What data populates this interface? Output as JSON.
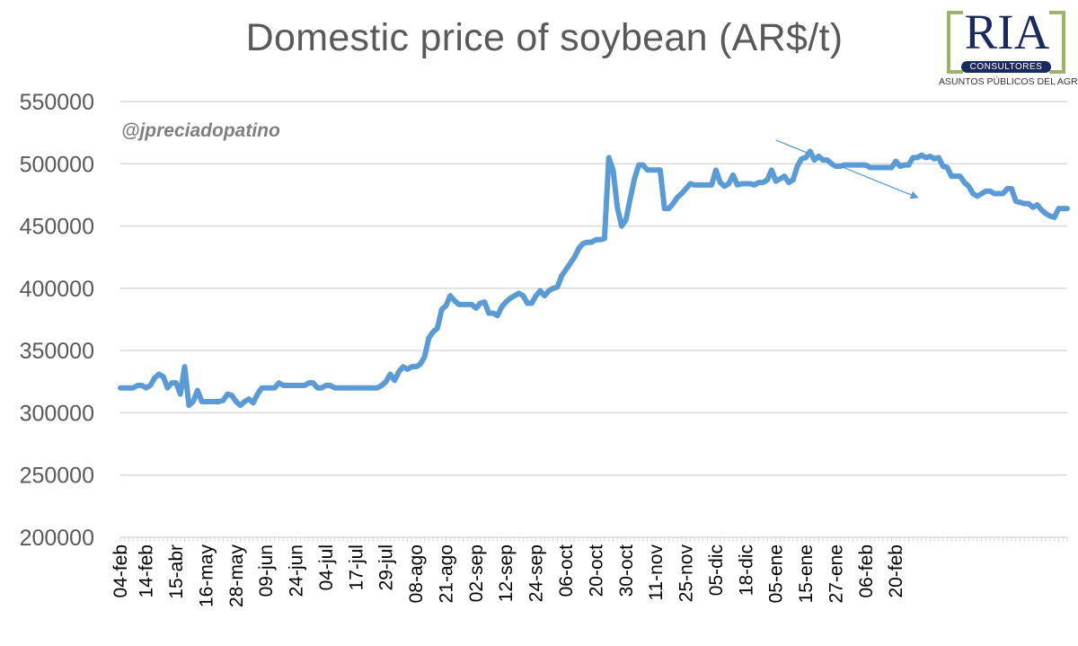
{
  "watermark": "@jpreciadopatino",
  "logo": {
    "name": "RIA",
    "badge": "CONSULTORES",
    "tagline": "ASUNTOS PÚBLICOS DEL AGRO",
    "colors": {
      "navy": "#1b2a5c",
      "green": "#9bb36a"
    }
  },
  "chart_data": {
    "type": "line",
    "title": "Domestic price of soybean (AR$/t)",
    "xlabel": "",
    "ylabel": "",
    "ylim": [
      200000,
      550000
    ],
    "yticks": [
      200000,
      250000,
      300000,
      350000,
      400000,
      450000,
      500000,
      550000
    ],
    "grid": "horizontal",
    "legend": "none",
    "line_color": "#5b9bd5",
    "tick_labels": [
      "04-feb",
      "14-feb",
      "15-abr",
      "16-may",
      "28-may",
      "09-jun",
      "24-jun",
      "04-jul",
      "17-jul",
      "29-jul",
      "08-ago",
      "21-ago",
      "02-sep",
      "12-sep",
      "24-sep",
      "06-oct",
      "20-oct",
      "30-oct",
      "11-nov",
      "25-nov",
      "05-dic",
      "18-dic",
      "05-ene",
      "15-ene",
      "27-ene",
      "06-feb",
      "20-feb"
    ],
    "tick_positions": [
      0,
      6,
      13,
      20,
      27,
      34,
      41,
      48,
      55,
      62,
      69,
      76,
      83,
      90,
      97,
      104,
      111,
      118,
      125,
      132,
      139,
      146,
      153,
      160,
      167,
      174,
      181
    ],
    "values": [
      320000,
      320000,
      320000,
      320000,
      322000,
      322000,
      320000,
      322000,
      328000,
      331000,
      329000,
      320000,
      324000,
      324000,
      315000,
      337000,
      306000,
      309000,
      318000,
      309000,
      309000,
      309000,
      309000,
      309000,
      310000,
      315000,
      314000,
      309000,
      306000,
      309000,
      311000,
      308000,
      315000,
      320000,
      320000,
      320000,
      320000,
      324000,
      322000,
      322000,
      322000,
      322000,
      322000,
      322000,
      324000,
      324000,
      320000,
      320000,
      322000,
      322000,
      320000,
      320000,
      320000,
      320000,
      320000,
      320000,
      320000,
      320000,
      320000,
      320000,
      320000,
      322000,
      325000,
      331000,
      326000,
      333000,
      337000,
      335000,
      337000,
      337000,
      339000,
      345000,
      360000,
      365000,
      368000,
      383000,
      386000,
      394000,
      390000,
      387000,
      387000,
      387000,
      387000,
      384000,
      388000,
      389000,
      380000,
      380000,
      378000,
      385000,
      389000,
      392000,
      394000,
      396000,
      394000,
      388000,
      388000,
      394000,
      398000,
      394000,
      398000,
      400000,
      401000,
      410000,
      415000,
      420000,
      425000,
      432000,
      436000,
      437000,
      437000,
      439000,
      439000,
      440000,
      505000,
      495000,
      465000,
      450000,
      455000,
      472000,
      488000,
      499000,
      499000,
      495000,
      495000,
      495000,
      495000,
      464000,
      464000,
      468000,
      473000,
      476000,
      480000,
      484000,
      483000,
      483000,
      483000,
      483000,
      483000,
      495000,
      485000,
      482000,
      484000,
      491000,
      483000,
      484000,
      484000,
      484000,
      483000,
      485000,
      485000,
      487000,
      495000,
      486000,
      488000,
      490000,
      485000,
      487000,
      498000,
      504000,
      505000,
      510000,
      503000,
      506000,
      503000,
      503000,
      500000,
      498000,
      498000,
      499000,
      499000,
      499000,
      499000,
      499000,
      499000,
      497000,
      497000,
      497000,
      497000,
      497000,
      497000,
      502000,
      498000,
      499000,
      499000,
      505000,
      505000,
      507000,
      505000,
      506000,
      504000,
      505000,
      498000,
      497000,
      490000,
      490000,
      490000,
      485000,
      482000,
      476000,
      474000,
      476000,
      478000,
      478000,
      476000,
      476000,
      476000,
      480000,
      480000,
      470000,
      469000,
      468000,
      468000,
      465000,
      467000,
      463000,
      460000,
      458000,
      457000,
      464000,
      464000,
      464000
    ],
    "annotations": [
      {
        "type": "trend-arrow",
        "from": {
          "x": 153,
          "y": 519000
        },
        "to": {
          "x": 186,
          "y": 473000
        }
      }
    ]
  }
}
